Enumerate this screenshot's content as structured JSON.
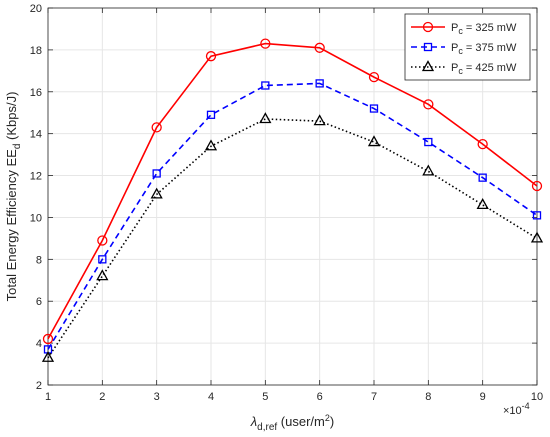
{
  "chart_data": {
    "type": "line",
    "x": [
      1,
      2,
      3,
      4,
      5,
      6,
      7,
      8,
      9,
      10
    ],
    "x_exponent_label": "×10",
    "x_exponent_power": "-4",
    "xlim": [
      1,
      10
    ],
    "ylim": [
      2,
      20
    ],
    "x_ticks": [
      1,
      2,
      3,
      4,
      5,
      6,
      7,
      8,
      9,
      10
    ],
    "y_ticks": [
      2,
      4,
      6,
      8,
      10,
      12,
      14,
      16,
      18,
      20
    ],
    "xlabel": {
      "main": "λ",
      "sub": "d,ref",
      "rest": " (user/m",
      "sup": "2",
      "end": ")"
    },
    "ylabel": {
      "main": "Total Energy Efficiency EE",
      "sub": "d",
      "rest": " (Kbps/J)"
    },
    "grid": true,
    "legend_position": "top-right",
    "series": [
      {
        "name_main": "P",
        "name_sub": "c",
        "name_rest": " = 325 mW",
        "color": "#ff0000",
        "dash": "solid",
        "marker": "circle",
        "values": [
          4.2,
          8.9,
          14.3,
          17.7,
          18.3,
          18.1,
          16.7,
          15.4,
          13.5,
          11.5
        ]
      },
      {
        "name_main": "P",
        "name_sub": "c",
        "name_rest": " = 375 mW",
        "color": "#0000ff",
        "dash": "dashed",
        "marker": "square",
        "values": [
          3.7,
          8.0,
          12.1,
          14.9,
          16.3,
          16.4,
          15.2,
          13.6,
          11.9,
          10.1
        ]
      },
      {
        "name_main": "P",
        "name_sub": "c",
        "name_rest": " = 425 mW",
        "color": "#000000",
        "dash": "dotted",
        "marker": "triangle",
        "values": [
          3.3,
          7.2,
          11.1,
          13.4,
          14.7,
          14.6,
          13.6,
          12.2,
          10.6,
          9.0
        ]
      }
    ]
  }
}
